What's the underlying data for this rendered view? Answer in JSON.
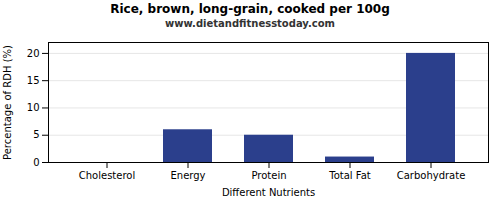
{
  "chart_data": {
    "type": "bar",
    "title": "Rice, brown, long-grain, cooked per 100g",
    "subtitle": "www.dietandfitnesstoday.com",
    "categories": [
      "Cholesterol",
      "Energy",
      "Protein",
      "Total Fat",
      "Carbohydrate"
    ],
    "values": [
      0,
      6,
      5,
      1,
      20
    ],
    "color": "#2b3f8c",
    "xlabel": "Different Nutrients",
    "ylabel": "Percentage of RDH (%)",
    "ylim": [
      0,
      22
    ],
    "yticks": [
      0,
      5,
      10,
      15,
      20
    ],
    "grid": true
  }
}
